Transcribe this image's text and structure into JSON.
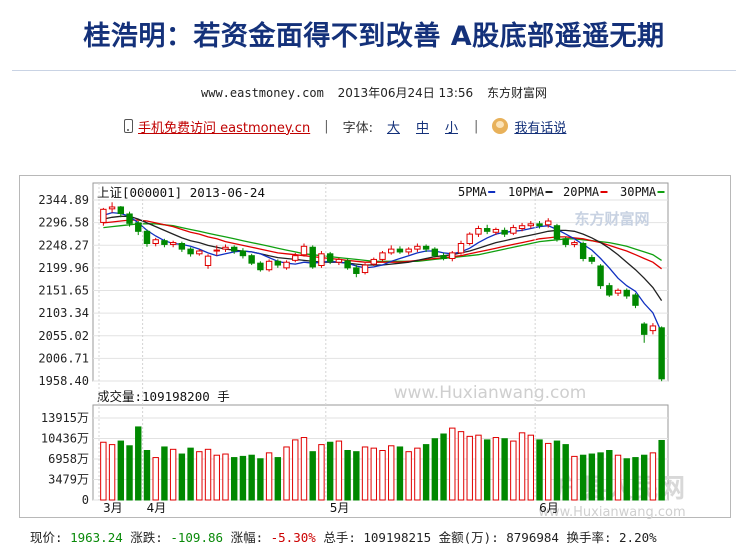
{
  "article": {
    "title": "桂浩明：若资金面得不到改善 A股底部遥遥无期",
    "site": "www.eastmoney.com",
    "datetime": "2013年06月24日 13:56",
    "source": "东方财富网"
  },
  "toolbar": {
    "mobile_link": "手机免费访问 eastmoney.cn",
    "font_label": "字体:",
    "font_large": "大",
    "font_medium": "中",
    "font_small": "小",
    "comment_link": "我有话说"
  },
  "watermarks": {
    "brand": "东方财富网",
    "site1": "www.Huxianwang.com",
    "brand2": "户县人民网",
    "site2": "www.Huxianwang.com"
  },
  "chart_data": {
    "type": "candlestick",
    "title": "上证[000001] 2013-06-24",
    "legend": [
      "5PMA",
      "10PMA",
      "20PMA",
      "30PMA"
    ],
    "legend_colors": [
      "#1030c0",
      "#222222",
      "#e00000",
      "#10a010"
    ],
    "price_ticks": [
      "2344.89",
      "2296.58",
      "2248.27",
      "2199.96",
      "2151.65",
      "2103.34",
      "2055.02",
      "2006.71",
      "1958.40"
    ],
    "ylim": [
      1958.4,
      2344.89
    ],
    "volume_label": "成交量:109198200 手",
    "volume_ticks": [
      "13915万",
      "10436万",
      "6958万",
      "3479万",
      "0"
    ],
    "volume_ylim": [
      0,
      13915
    ],
    "month_labels": [
      "3月",
      "4月",
      "5月",
      "6月"
    ],
    "month_label_index": [
      0,
      5,
      26,
      50
    ],
    "candles": [
      [
        2297,
        2325,
        2290,
        2328,
        "u"
      ],
      [
        2326,
        2330,
        2318,
        2340,
        "u"
      ],
      [
        2330,
        2316,
        2308,
        2332,
        "d"
      ],
      [
        2315,
        2295,
        2288,
        2320,
        "d"
      ],
      [
        2296,
        2278,
        2270,
        2300,
        "d"
      ],
      [
        2278,
        2252,
        2245,
        2282,
        "d"
      ],
      [
        2252,
        2260,
        2246,
        2264,
        "u"
      ],
      [
        2258,
        2250,
        2244,
        2262,
        "d"
      ],
      [
        2250,
        2254,
        2244,
        2258,
        "u"
      ],
      [
        2252,
        2240,
        2234,
        2256,
        "d"
      ],
      [
        2240,
        2230,
        2224,
        2244,
        "d"
      ],
      [
        2230,
        2236,
        2226,
        2240,
        "u"
      ],
      [
        2225,
        2205,
        2198,
        2229,
        "u"
      ],
      [
        2236,
        2238,
        2226,
        2248,
        "u"
      ],
      [
        2240,
        2244,
        2234,
        2250,
        "u"
      ],
      [
        2244,
        2236,
        2230,
        2248,
        "d"
      ],
      [
        2236,
        2226,
        2220,
        2242,
        "d"
      ],
      [
        2226,
        2210,
        2206,
        2230,
        "d"
      ],
      [
        2210,
        2196,
        2192,
        2214,
        "d"
      ],
      [
        2196,
        2214,
        2192,
        2218,
        "u"
      ],
      [
        2214,
        2206,
        2200,
        2218,
        "d"
      ],
      [
        2200,
        2212,
        2196,
        2216,
        "u"
      ],
      [
        2216,
        2226,
        2212,
        2232,
        "u"
      ],
      [
        2228,
        2246,
        2224,
        2252,
        "u"
      ],
      [
        2244,
        2202,
        2198,
        2248,
        "d"
      ],
      [
        2205,
        2230,
        2200,
        2236,
        "u"
      ],
      [
        2230,
        2214,
        2208,
        2234,
        "d"
      ],
      [
        2212,
        2218,
        2206,
        2222,
        "u"
      ],
      [
        2215,
        2200,
        2196,
        2220,
        "d"
      ],
      [
        2200,
        2188,
        2180,
        2206,
        "d"
      ],
      [
        2190,
        2206,
        2186,
        2210,
        "u"
      ],
      [
        2208,
        2218,
        2204,
        2222,
        "u"
      ],
      [
        2218,
        2232,
        2214,
        2236,
        "u"
      ],
      [
        2232,
        2240,
        2228,
        2248,
        "u"
      ],
      [
        2240,
        2234,
        2230,
        2246,
        "d"
      ],
      [
        2234,
        2240,
        2228,
        2244,
        "u"
      ],
      [
        2240,
        2246,
        2234,
        2252,
        "u"
      ],
      [
        2246,
        2240,
        2234,
        2250,
        "d"
      ],
      [
        2240,
        2226,
        2222,
        2244,
        "d"
      ],
      [
        2226,
        2220,
        2216,
        2232,
        "d"
      ],
      [
        2220,
        2232,
        2214,
        2236,
        "u"
      ],
      [
        2232,
        2252,
        2228,
        2258,
        "u"
      ],
      [
        2252,
        2272,
        2248,
        2276,
        "u"
      ],
      [
        2272,
        2284,
        2266,
        2290,
        "u"
      ],
      [
        2284,
        2278,
        2272,
        2292,
        "d"
      ],
      [
        2276,
        2282,
        2270,
        2286,
        "u"
      ],
      [
        2280,
        2272,
        2266,
        2286,
        "d"
      ],
      [
        2274,
        2286,
        2270,
        2292,
        "u"
      ],
      [
        2284,
        2290,
        2278,
        2296,
        "u"
      ],
      [
        2290,
        2294,
        2284,
        2300,
        "u"
      ],
      [
        2294,
        2290,
        2284,
        2300,
        "d"
      ],
      [
        2292,
        2300,
        2286,
        2306,
        "u"
      ],
      [
        2290,
        2262,
        2256,
        2294,
        "d"
      ],
      [
        2262,
        2250,
        2244,
        2266,
        "d"
      ],
      [
        2250,
        2254,
        2244,
        2258,
        "u"
      ],
      [
        2252,
        2220,
        2214,
        2256,
        "d"
      ],
      [
        2222,
        2214,
        2208,
        2228,
        "d"
      ],
      [
        2204,
        2162,
        2155,
        2208,
        "d"
      ],
      [
        2162,
        2142,
        2138,
        2168,
        "d"
      ],
      [
        2146,
        2152,
        2140,
        2156,
        "u"
      ],
      [
        2152,
        2140,
        2134,
        2156,
        "d"
      ],
      [
        2142,
        2120,
        2114,
        2146,
        "d"
      ],
      [
        2080,
        2058,
        2040,
        2084,
        "d"
      ],
      [
        2066,
        2076,
        2058,
        2082,
        "u"
      ],
      [
        2072,
        1963,
        1958,
        2075,
        "d"
      ]
    ],
    "ma5": [
      2312,
      2318,
      2316,
      2310,
      2296,
      2280,
      2268,
      2258,
      2252,
      2250,
      2246,
      2240,
      2232,
      2226,
      2230,
      2234,
      2236,
      2234,
      2230,
      2222,
      2214,
      2210,
      2208,
      2212,
      2210,
      2212,
      2214,
      2212,
      2210,
      2204,
      2200,
      2202,
      2206,
      2214,
      2220,
      2226,
      2232,
      2236,
      2236,
      2232,
      2230,
      2234,
      2242,
      2254,
      2264,
      2272,
      2276,
      2278,
      2280,
      2284,
      2288,
      2290,
      2282,
      2272,
      2262,
      2250,
      2238,
      2220,
      2200,
      2178,
      2162,
      2150,
      2124,
      2104,
      2062
    ],
    "ma10": [
      2304,
      2308,
      2310,
      2310,
      2304,
      2296,
      2288,
      2280,
      2272,
      2264,
      2258,
      2254,
      2248,
      2244,
      2240,
      2238,
      2236,
      2234,
      2230,
      2226,
      2222,
      2220,
      2218,
      2216,
      2214,
      2212,
      2212,
      2212,
      2210,
      2208,
      2206,
      2206,
      2206,
      2208,
      2210,
      2212,
      2216,
      2220,
      2224,
      2226,
      2228,
      2232,
      2236,
      2242,
      2248,
      2254,
      2258,
      2262,
      2266,
      2270,
      2274,
      2278,
      2280,
      2280,
      2278,
      2272,
      2264,
      2254,
      2242,
      2228,
      2212,
      2196,
      2178,
      2158,
      2130
    ],
    "ma20": [
      2296,
      2298,
      2300,
      2302,
      2302,
      2300,
      2296,
      2292,
      2288,
      2282,
      2276,
      2272,
      2266,
      2262,
      2256,
      2252,
      2248,
      2244,
      2240,
      2236,
      2232,
      2230,
      2228,
      2226,
      2224,
      2222,
      2220,
      2218,
      2216,
      2214,
      2212,
      2212,
      2212,
      2212,
      2212,
      2214,
      2216,
      2218,
      2220,
      2222,
      2224,
      2226,
      2230,
      2234,
      2238,
      2242,
      2246,
      2250,
      2254,
      2258,
      2262,
      2264,
      2266,
      2266,
      2264,
      2262,
      2258,
      2254,
      2248,
      2242,
      2236,
      2228,
      2220,
      2212,
      2198
    ],
    "ma30": [
      2286,
      2288,
      2290,
      2292,
      2294,
      2294,
      2294,
      2292,
      2290,
      2286,
      2282,
      2278,
      2274,
      2270,
      2266,
      2262,
      2258,
      2254,
      2250,
      2246,
      2242,
      2238,
      2234,
      2230,
      2228,
      2226,
      2224,
      2222,
      2220,
      2218,
      2216,
      2214,
      2214,
      2214,
      2214,
      2214,
      2214,
      2216,
      2218,
      2220,
      2222,
      2224,
      2226,
      2228,
      2232,
      2236,
      2240,
      2244,
      2248,
      2252,
      2256,
      2258,
      2260,
      2262,
      2262,
      2260,
      2258,
      2256,
      2254,
      2250,
      2246,
      2240,
      2234,
      2228,
      2216
    ],
    "volumes": [
      9800,
      9400,
      10000,
      9200,
      12400,
      8400,
      7200,
      9000,
      8600,
      7800,
      8800,
      8200,
      8600,
      7600,
      7800,
      7200,
      7400,
      7600,
      7000,
      8000,
      7200,
      9000,
      10200,
      10600,
      8200,
      9400,
      9800,
      10000,
      8400,
      8200,
      9000,
      8800,
      8400,
      9200,
      9000,
      8200,
      8800,
      9400,
      10400,
      11200,
      12200,
      11600,
      10800,
      11000,
      10200,
      10600,
      10400,
      10000,
      11400,
      11000,
      10200,
      9600,
      10000,
      9400,
      7400,
      7600,
      7800,
      8000,
      8400,
      7600,
      7000,
      7200,
      7600,
      8000,
      10100
    ]
  },
  "quote": {
    "price_label": "现价:",
    "price_value": "1963.24",
    "change_label": "涨跌:",
    "change_value": "-109.86",
    "pct_label": "涨幅:",
    "pct_value": "-5.30%",
    "vol_label": "总手:",
    "vol_value": "109198215",
    "amount_label": "金额(万):",
    "amount_value": "8796984",
    "turnover_label": "换手率:",
    "turnover_value": "2.20%"
  }
}
